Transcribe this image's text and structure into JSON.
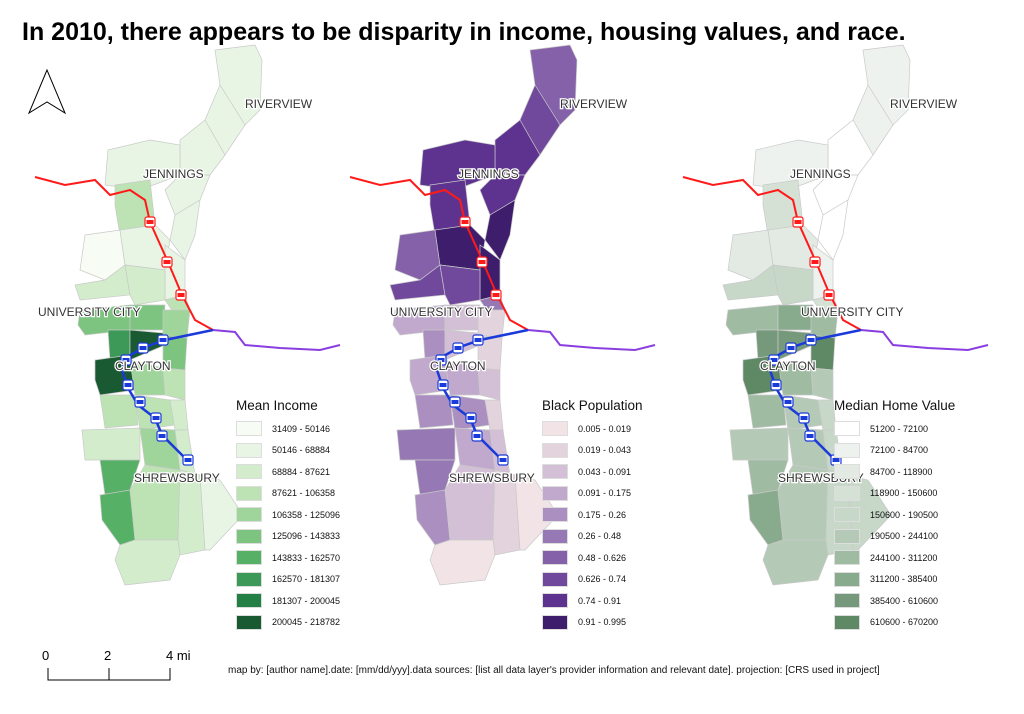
{
  "title": "In 2010, there appears to be disparity in income, housing values, and race.",
  "neighborhoods": {
    "riverview": "RIVERVIEW",
    "jennings": "JENNINGS",
    "university_city": "UNIVERSITY CITY",
    "clayton": "CLAYTON",
    "shrewsbury": "SHREWSBURY"
  },
  "maps": [
    {
      "legend_title": "Mean Income",
      "classes": [
        "31409 - 50146",
        "50146 - 68884",
        "68884 - 87621",
        "87621 - 106358",
        "106358 - 125096",
        "125096 - 143833",
        "143833 - 162570",
        "162570 - 181307",
        "181307 - 200045",
        "200045 - 218782"
      ],
      "colors": [
        "#f7fcf5",
        "#e8f5e4",
        "#d3edcc",
        "#bde3b5",
        "#9fd59a",
        "#7cc47f",
        "#56b167",
        "#3d9958",
        "#237f43",
        "#1a5a32"
      ],
      "tract_classes": [
        1,
        1,
        1,
        1,
        3,
        1,
        1,
        0,
        1,
        1,
        2,
        2,
        3,
        5,
        5,
        4,
        7,
        9,
        5,
        9,
        4,
        3,
        3,
        3,
        2,
        2,
        4,
        2,
        6,
        6,
        3,
        2,
        1,
        2
      ]
    },
    {
      "legend_title": "Black Population",
      "classes": [
        "0.005 - 0.019",
        "0.019 - 0.043",
        "0.043 - 0.091",
        "0.091 - 0.175",
        "0.175 - 0.26",
        "0.26 - 0.48",
        "0.48 - 0.626",
        "0.626 - 0.74",
        "0.74 - 0.91",
        "0.91 - 0.995"
      ],
      "colors": [
        "#f2e4e6",
        "#e2d3dc",
        "#d3bfd6",
        "#c0a9cc",
        "#aa8fc0",
        "#9678b4",
        "#8461a8",
        "#71499c",
        "#5e338f",
        "#3e1d6d"
      ],
      "tract_classes": [
        6,
        7,
        8,
        8,
        8,
        8,
        9,
        6,
        9,
        9,
        7,
        7,
        5,
        3,
        2,
        1,
        4,
        2,
        1,
        3,
        3,
        2,
        4,
        4,
        1,
        5,
        3,
        2,
        5,
        4,
        2,
        1,
        0,
        0
      ]
    },
    {
      "legend_title": "Median Home Value",
      "classes": [
        "51200 - 72100",
        "72100 - 84700",
        "84700 - 118900",
        "118900 - 150600",
        "150600 - 190500",
        "190500 - 244100",
        "244100 - 311200",
        "311200 - 385400",
        "385400 - 610600",
        "610600 - 670200"
      ],
      "colors": [
        "#ffffff",
        "#eef2ee",
        "#e3eae3",
        "#d6e1d6",
        "#c7d7c8",
        "#b4cab6",
        "#9fbba2",
        "#89ab8d",
        "#75997a",
        "#5e8964"
      ],
      "tract_classes": [
        1,
        1,
        0,
        1,
        3,
        0,
        0,
        2,
        2,
        1,
        4,
        4,
        3,
        6,
        7,
        6,
        8,
        8,
        9,
        9,
        6,
        5,
        6,
        5,
        4,
        5,
        5,
        4,
        6,
        7,
        5,
        4,
        4,
        5
      ]
    }
  ],
  "transit_colors": {
    "red_line": "#ff1a1a",
    "blue_line": "#1a3ad9",
    "purple_line": "#8a3ee0"
  },
  "scale_bar": {
    "ticks": [
      "0",
      "2",
      "4 mi"
    ]
  },
  "footer": "map by: [author name].date: [mm/dd/yyy].data sources: [list all data layer's provider information and relevant date]. projection: [CRS used in project]"
}
